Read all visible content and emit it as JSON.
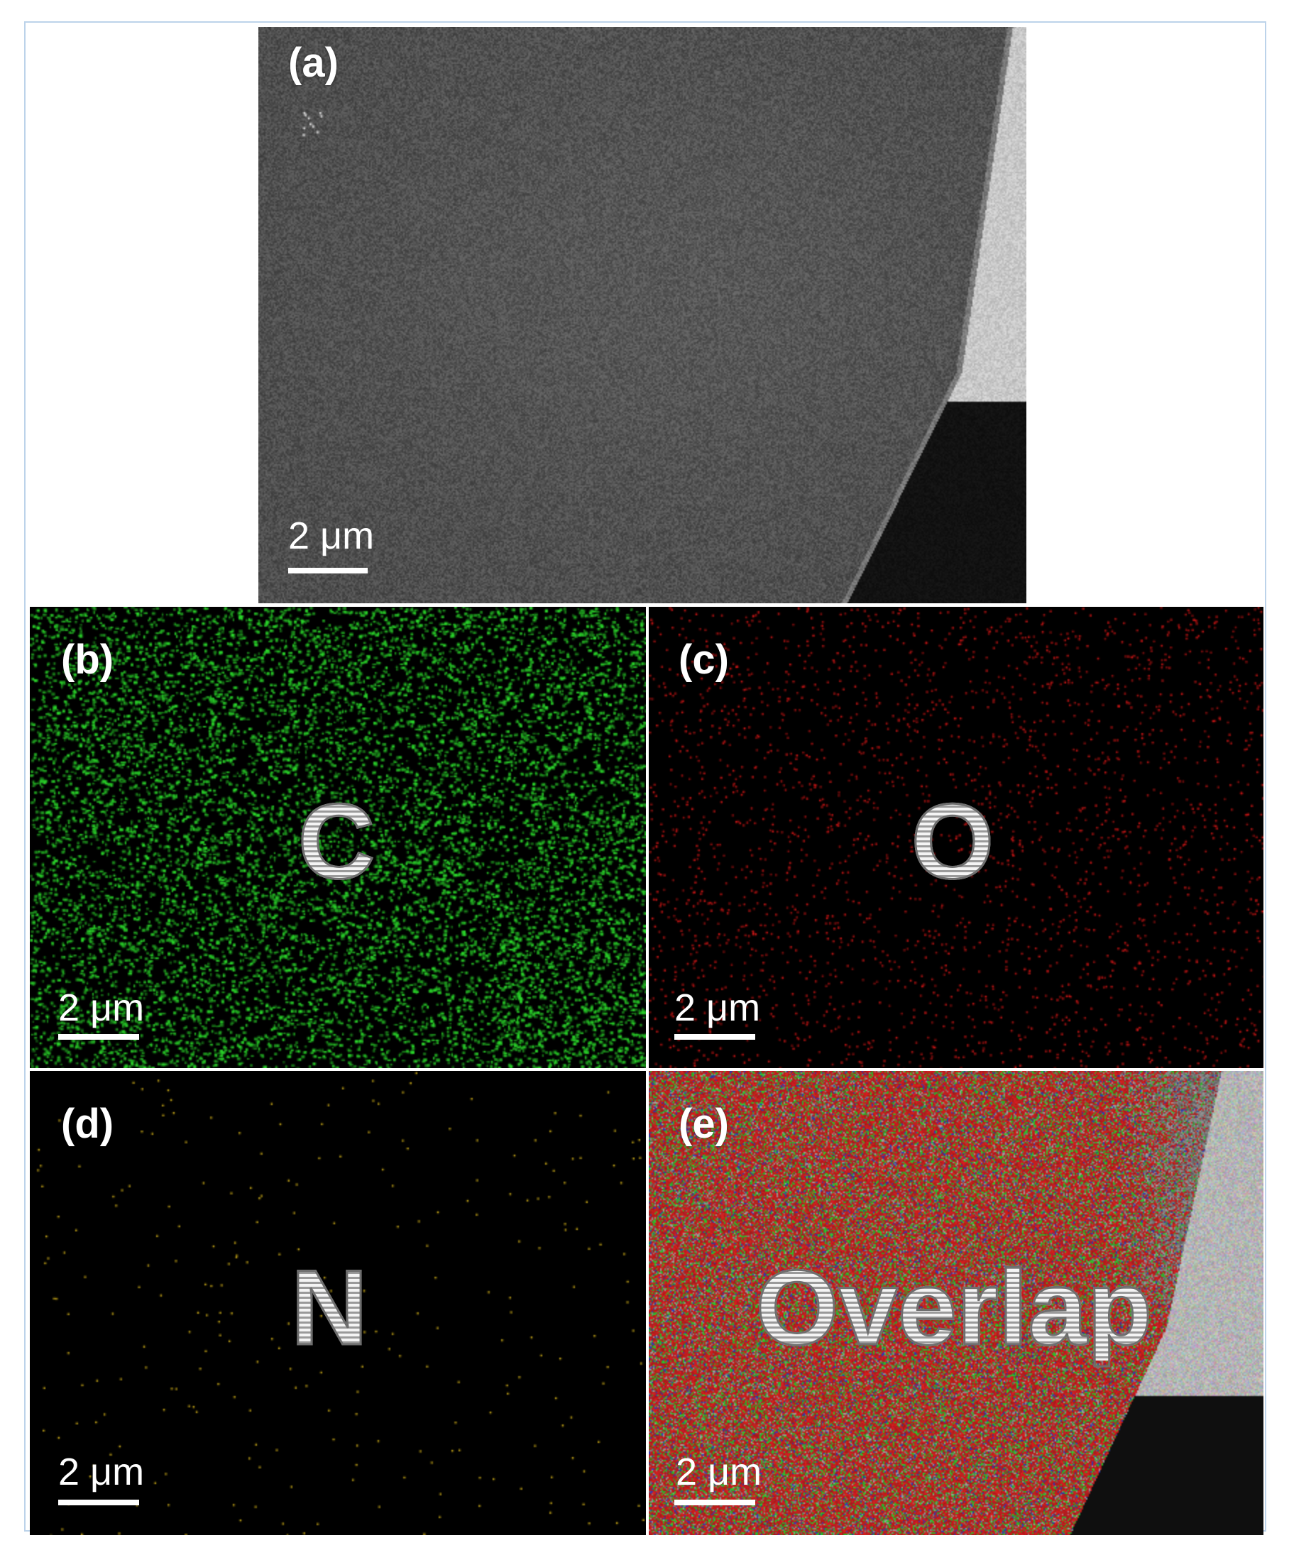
{
  "panels": {
    "a": {
      "tag": "(a)",
      "scale_label": "2 μm"
    },
    "b": {
      "tag": "(b)",
      "scale_label": "2 μm",
      "element": "C",
      "color": "#2bd82b"
    },
    "c": {
      "tag": "(c)",
      "scale_label": "2 μm",
      "element": "O",
      "color": "#e01818"
    },
    "d": {
      "tag": "(d)",
      "scale_label": "2 μm",
      "element": "N",
      "color": "#d4b21a"
    },
    "e": {
      "tag": "(e)",
      "scale_label": "2 μm",
      "element": "Overlap",
      "colors": [
        "#e01818",
        "#2bd82b",
        "#2a3ad0"
      ]
    }
  },
  "colors": {
    "frame_border": "#bcd3ea",
    "background": "#ffffff",
    "sem_gray": "#585858"
  }
}
